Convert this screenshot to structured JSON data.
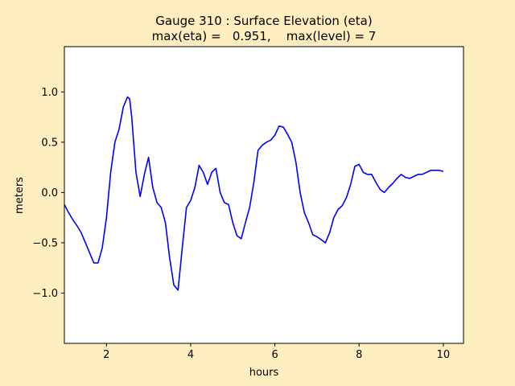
{
  "figure": {
    "background": "#ffeebf",
    "title_line1": "Gauge 310 : Surface Elevation (eta)",
    "title_line2": "max(eta) =   0.951,    max(level) = 7"
  },
  "chart_data": {
    "type": "line",
    "xlabel": "hours",
    "ylabel": "meters",
    "xlim": [
      1.0,
      10.48
    ],
    "ylim": [
      -1.5,
      1.45
    ],
    "xticks": [
      2,
      4,
      6,
      8,
      10
    ],
    "xtick_labels": [
      "2",
      "4",
      "6",
      "8",
      "10"
    ],
    "yticks": [
      -1.0,
      -0.5,
      0.0,
      0.5,
      1.0
    ],
    "ytick_labels": [
      "−1.0",
      "−0.5",
      "0.0",
      "0.5",
      "1.0"
    ],
    "grid": false,
    "legend": "none",
    "series": [
      {
        "color": "#0000ff",
        "x": [
          1.0,
          1.1,
          1.2,
          1.3,
          1.4,
          1.5,
          1.6,
          1.7,
          1.8,
          1.9,
          2.0,
          2.1,
          2.2,
          2.3,
          2.4,
          2.5,
          2.55,
          2.6,
          2.7,
          2.8,
          2.9,
          3.0,
          3.1,
          3.2,
          3.3,
          3.4,
          3.5,
          3.6,
          3.7,
          3.8,
          3.9,
          4.0,
          4.1,
          4.2,
          4.3,
          4.4,
          4.5,
          4.6,
          4.7,
          4.8,
          4.9,
          5.0,
          5.1,
          5.2,
          5.3,
          5.4,
          5.5,
          5.6,
          5.7,
          5.8,
          5.9,
          6.0,
          6.1,
          6.2,
          6.3,
          6.4,
          6.5,
          6.6,
          6.7,
          6.8,
          6.9,
          7.0,
          7.1,
          7.2,
          7.3,
          7.4,
          7.5,
          7.6,
          7.7,
          7.8,
          7.9,
          8.0,
          8.1,
          8.2,
          8.3,
          8.4,
          8.5,
          8.6,
          8.7,
          8.8,
          8.9,
          9.0,
          9.1,
          9.2,
          9.3,
          9.4,
          9.5,
          9.6,
          9.7,
          9.8,
          9.9,
          10.0
        ],
        "y": [
          -0.12,
          -0.2,
          -0.27,
          -0.33,
          -0.4,
          -0.5,
          -0.6,
          -0.7,
          -0.7,
          -0.55,
          -0.25,
          0.2,
          0.5,
          0.63,
          0.85,
          0.95,
          0.93,
          0.75,
          0.2,
          -0.04,
          0.18,
          0.35,
          0.05,
          -0.1,
          -0.15,
          -0.3,
          -0.65,
          -0.92,
          -0.97,
          -0.55,
          -0.15,
          -0.08,
          0.05,
          0.27,
          0.2,
          0.08,
          0.2,
          0.24,
          0.0,
          -0.1,
          -0.12,
          -0.3,
          -0.43,
          -0.46,
          -0.3,
          -0.15,
          0.1,
          0.42,
          0.47,
          0.5,
          0.52,
          0.57,
          0.66,
          0.65,
          0.58,
          0.5,
          0.3,
          0.0,
          -0.2,
          -0.3,
          -0.42,
          -0.44,
          -0.47,
          -0.5,
          -0.4,
          -0.25,
          -0.17,
          -0.13,
          -0.05,
          0.08,
          0.26,
          0.28,
          0.2,
          0.18,
          0.18,
          0.1,
          0.03,
          0.0,
          0.05,
          0.09,
          0.14,
          0.18,
          0.15,
          0.14,
          0.16,
          0.18,
          0.18,
          0.2,
          0.22,
          0.22,
          0.22,
          0.21
        ]
      }
    ]
  }
}
